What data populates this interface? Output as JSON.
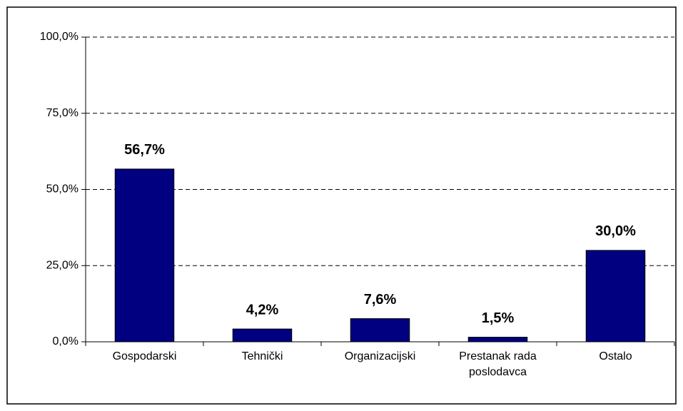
{
  "chart_data": {
    "type": "bar",
    "categories": [
      "Gospodarski",
      "Tehnički",
      "Organizacijski",
      "Prestanak rada poslodavca",
      "Ostalo"
    ],
    "values": [
      56.7,
      4.2,
      7.6,
      1.5,
      30.0
    ],
    "value_labels": [
      "56,7%",
      "4,2%",
      "7,6%",
      "1,5%",
      "30,0%"
    ],
    "color": "#000080",
    "ylim": [
      0,
      100
    ],
    "yticks": [
      {
        "value": 0,
        "label": "0,0%"
      },
      {
        "value": 25,
        "label": "25,0%"
      },
      {
        "value": 50,
        "label": "50,0%"
      },
      {
        "value": 75,
        "label": "75,0%"
      },
      {
        "value": 100,
        "label": "100,0%"
      }
    ],
    "grid": true
  }
}
